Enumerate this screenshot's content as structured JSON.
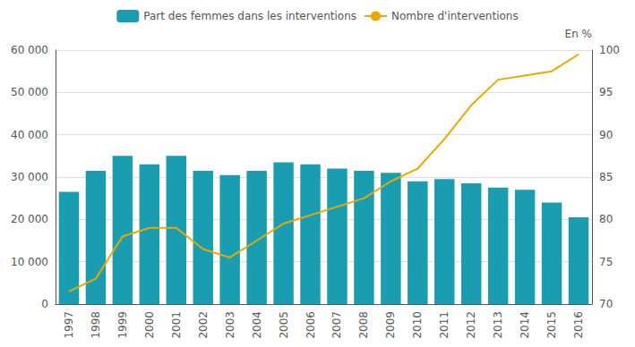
{
  "chart_data": {
    "type": "bar",
    "categories": [
      "1997",
      "1998",
      "1999",
      "2000",
      "2001",
      "2002",
      "2003",
      "2004",
      "2005",
      "2006",
      "2007",
      "2008",
      "2009",
      "2010",
      "2011",
      "2012",
      "2013",
      "2014",
      "2015",
      "2016"
    ],
    "series": [
      {
        "name": "Part des femmes dans les interventions",
        "type": "bar",
        "color": "#1a9db0",
        "values": [
          26500,
          31500,
          35000,
          33000,
          35000,
          31500,
          30500,
          31500,
          33500,
          33000,
          32000,
          31500,
          31000,
          29000,
          29500,
          28500,
          27500,
          27000,
          24000,
          20500
        ]
      },
      {
        "name": "Nombre d'interventions",
        "type": "line",
        "color": "#e8a800",
        "axis": "y2",
        "values": [
          71.5,
          73.0,
          78.0,
          79.0,
          79.0,
          76.5,
          75.5,
          77.5,
          79.5,
          80.5,
          81.5,
          82.5,
          84.5,
          86.0,
          89.5,
          93.5,
          96.5,
          97.0,
          97.5,
          99.5
        ]
      }
    ],
    "ylim": [
      0,
      60000
    ],
    "yticks": [
      0,
      {
        "value": 10000,
        "label": "10 000"
      },
      {
        "value": 20000,
        "label": "20 000"
      },
      {
        "value": 30000,
        "label": "30 000"
      },
      {
        "value": 40000,
        "label": "40 000"
      },
      {
        "value": 50000,
        "label": "50 000"
      },
      {
        "value": 60000,
        "label": "60 000"
      }
    ],
    "y2lim": [
      70,
      100
    ],
    "y2ticks": [
      70,
      75,
      80,
      85,
      90,
      95,
      100
    ],
    "y2label": "En %",
    "grid": true,
    "legend": "top"
  }
}
